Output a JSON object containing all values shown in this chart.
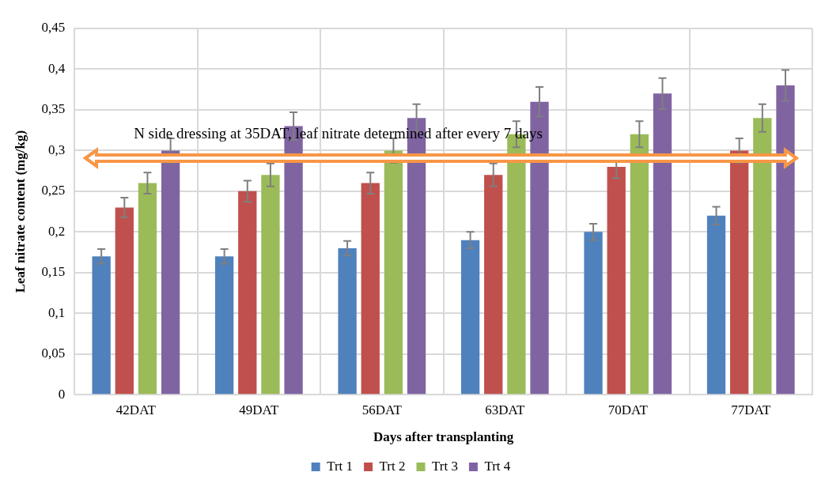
{
  "chart_data": {
    "type": "bar",
    "xlabel": "Days after transplanting",
    "ylabel": "Leaf nitrate content (mg/kg)",
    "categories": [
      "42DAT",
      "49DAT",
      "56DAT",
      "63DAT",
      "70DAT",
      "77DAT"
    ],
    "series": [
      {
        "name": "Trt 1",
        "color": "#4f81bd",
        "values": [
          0.17,
          0.17,
          0.18,
          0.19,
          0.2,
          0.22
        ],
        "errors": [
          0.009,
          0.009,
          0.009,
          0.01,
          0.01,
          0.011
        ]
      },
      {
        "name": "Trt 2",
        "color": "#c0504d",
        "values": [
          0.23,
          0.25,
          0.26,
          0.27,
          0.28,
          0.3
        ],
        "errors": [
          0.012,
          0.013,
          0.013,
          0.014,
          0.014,
          0.015
        ]
      },
      {
        "name": "Trt 3",
        "color": "#9bbb59",
        "values": [
          0.26,
          0.27,
          0.3,
          0.32,
          0.32,
          0.34
        ],
        "errors": [
          0.013,
          0.014,
          0.015,
          0.016,
          0.016,
          0.017
        ]
      },
      {
        "name": "Trt 4",
        "color": "#8064a2",
        "values": [
          0.3,
          0.33,
          0.34,
          0.36,
          0.37,
          0.38
        ],
        "errors": [
          0.015,
          0.017,
          0.017,
          0.018,
          0.019,
          0.019
        ]
      }
    ],
    "ylim": [
      0,
      0.45
    ],
    "yticks": [
      {
        "value": 0,
        "label": "0"
      },
      {
        "value": 0.05,
        "label": "0,05"
      },
      {
        "value": 0.1,
        "label": "0,1"
      },
      {
        "value": 0.15,
        "label": "0,15"
      },
      {
        "value": 0.2,
        "label": "0,2"
      },
      {
        "value": 0.25,
        "label": "0,25"
      },
      {
        "value": 0.3,
        "label": "0,3"
      },
      {
        "value": 0.35,
        "label": "0,35"
      },
      {
        "value": 0.4,
        "label": "0,4"
      },
      {
        "value": 0.45,
        "label": "0,45"
      }
    ],
    "grid": true,
    "legend": "bottom",
    "annotations": [
      "N side dressing at 35DAT, leaf nitrate determined after every 7 days"
    ]
  }
}
